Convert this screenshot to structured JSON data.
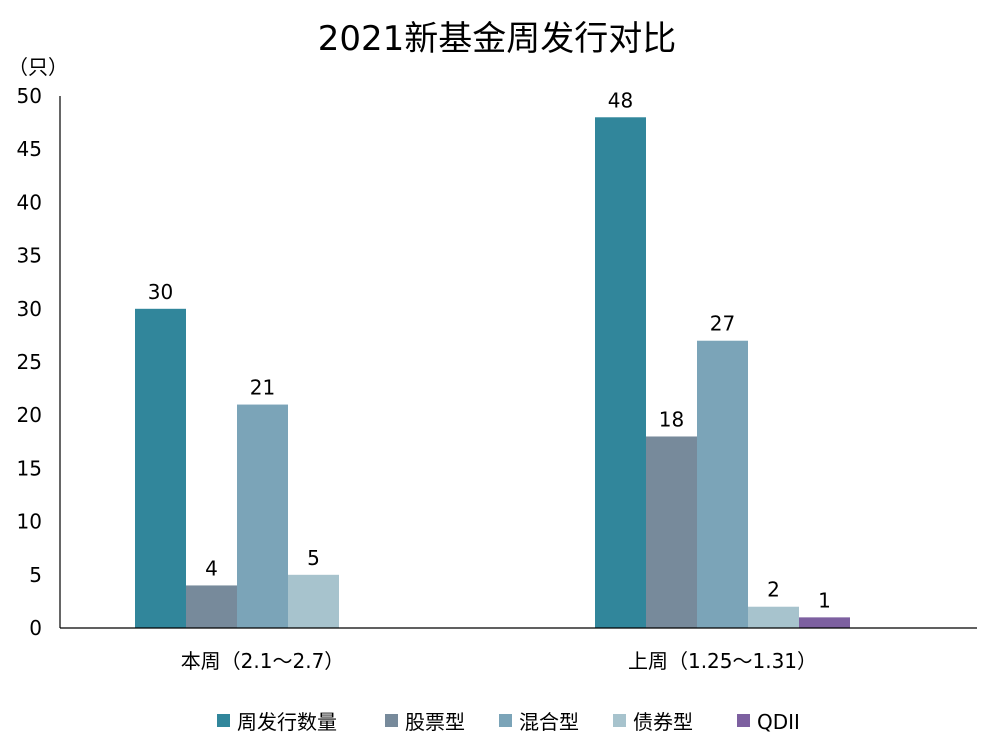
{
  "chart_data": {
    "type": "bar",
    "title": "2021新基金周发行对比",
    "unit_label": "（只）",
    "xlabel": "",
    "ylabel": "",
    "ylim": [
      0,
      50
    ],
    "yticks": [
      0,
      5,
      10,
      15,
      20,
      25,
      30,
      35,
      40,
      45,
      50
    ],
    "grid": false,
    "legend_position": "bottom",
    "categories": [
      "本周（2.1～2.7）",
      "上周（1.25～1.31）"
    ],
    "series": [
      {
        "name": "周发行数量",
        "color": "#31869b",
        "values": [
          30,
          48
        ]
      },
      {
        "name": "股票型",
        "color": "#778a9b",
        "values": [
          4,
          18
        ]
      },
      {
        "name": "混合型",
        "color": "#7ba4b8",
        "values": [
          21,
          27
        ]
      },
      {
        "name": "债券型",
        "color": "#a7c3cd",
        "values": [
          5,
          2
        ]
      },
      {
        "name": "QDII",
        "color": "#7d60a0",
        "values": [
          0,
          1
        ]
      }
    ]
  }
}
